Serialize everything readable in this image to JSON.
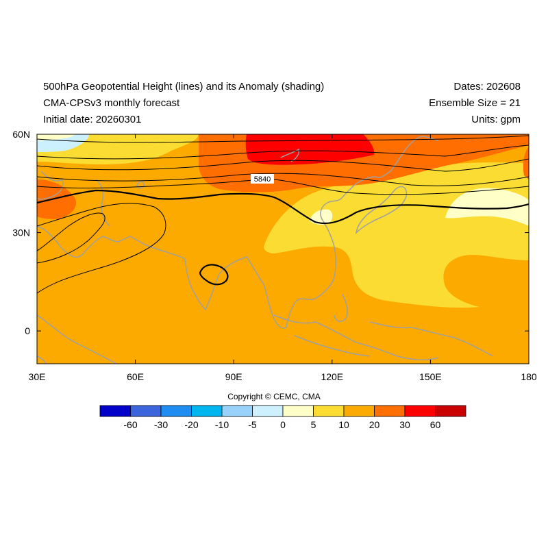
{
  "header": {
    "title_line1": "500hPa Geopotential Height (lines) and its Anomaly (shading)",
    "title_line2": "CMA-CPSv3 monthly forecast",
    "title_line3": "Initial date: 20260301",
    "dates": "Dates: 202608",
    "ensemble": "Ensemble Size = 21",
    "units": "Units: gpm"
  },
  "map": {
    "lon_range": [
      30,
      180
    ],
    "lat_range": [
      -10,
      60
    ],
    "lon_ticks": [
      "30E",
      "60E",
      "90E",
      "120E",
      "150E",
      "180"
    ],
    "lat_ticks": [
      "60N",
      "30N",
      "0"
    ],
    "contour_label": "5840"
  },
  "colorbar": {
    "labels": [
      "-60",
      "-30",
      "-20",
      "-10",
      "-5",
      "0",
      "5",
      "10",
      "20",
      "30",
      "60"
    ],
    "colors": [
      "#0000c8",
      "#3c64dc",
      "#1e8cf0",
      "#00b4f0",
      "#96d2fa",
      "#cdf0ff",
      "#ffffc8",
      "#fadc32",
      "#fcaa00",
      "#ff6e00",
      "#ff0000",
      "#c80000"
    ]
  },
  "copyright": "Copyright © CEMC, CMA"
}
